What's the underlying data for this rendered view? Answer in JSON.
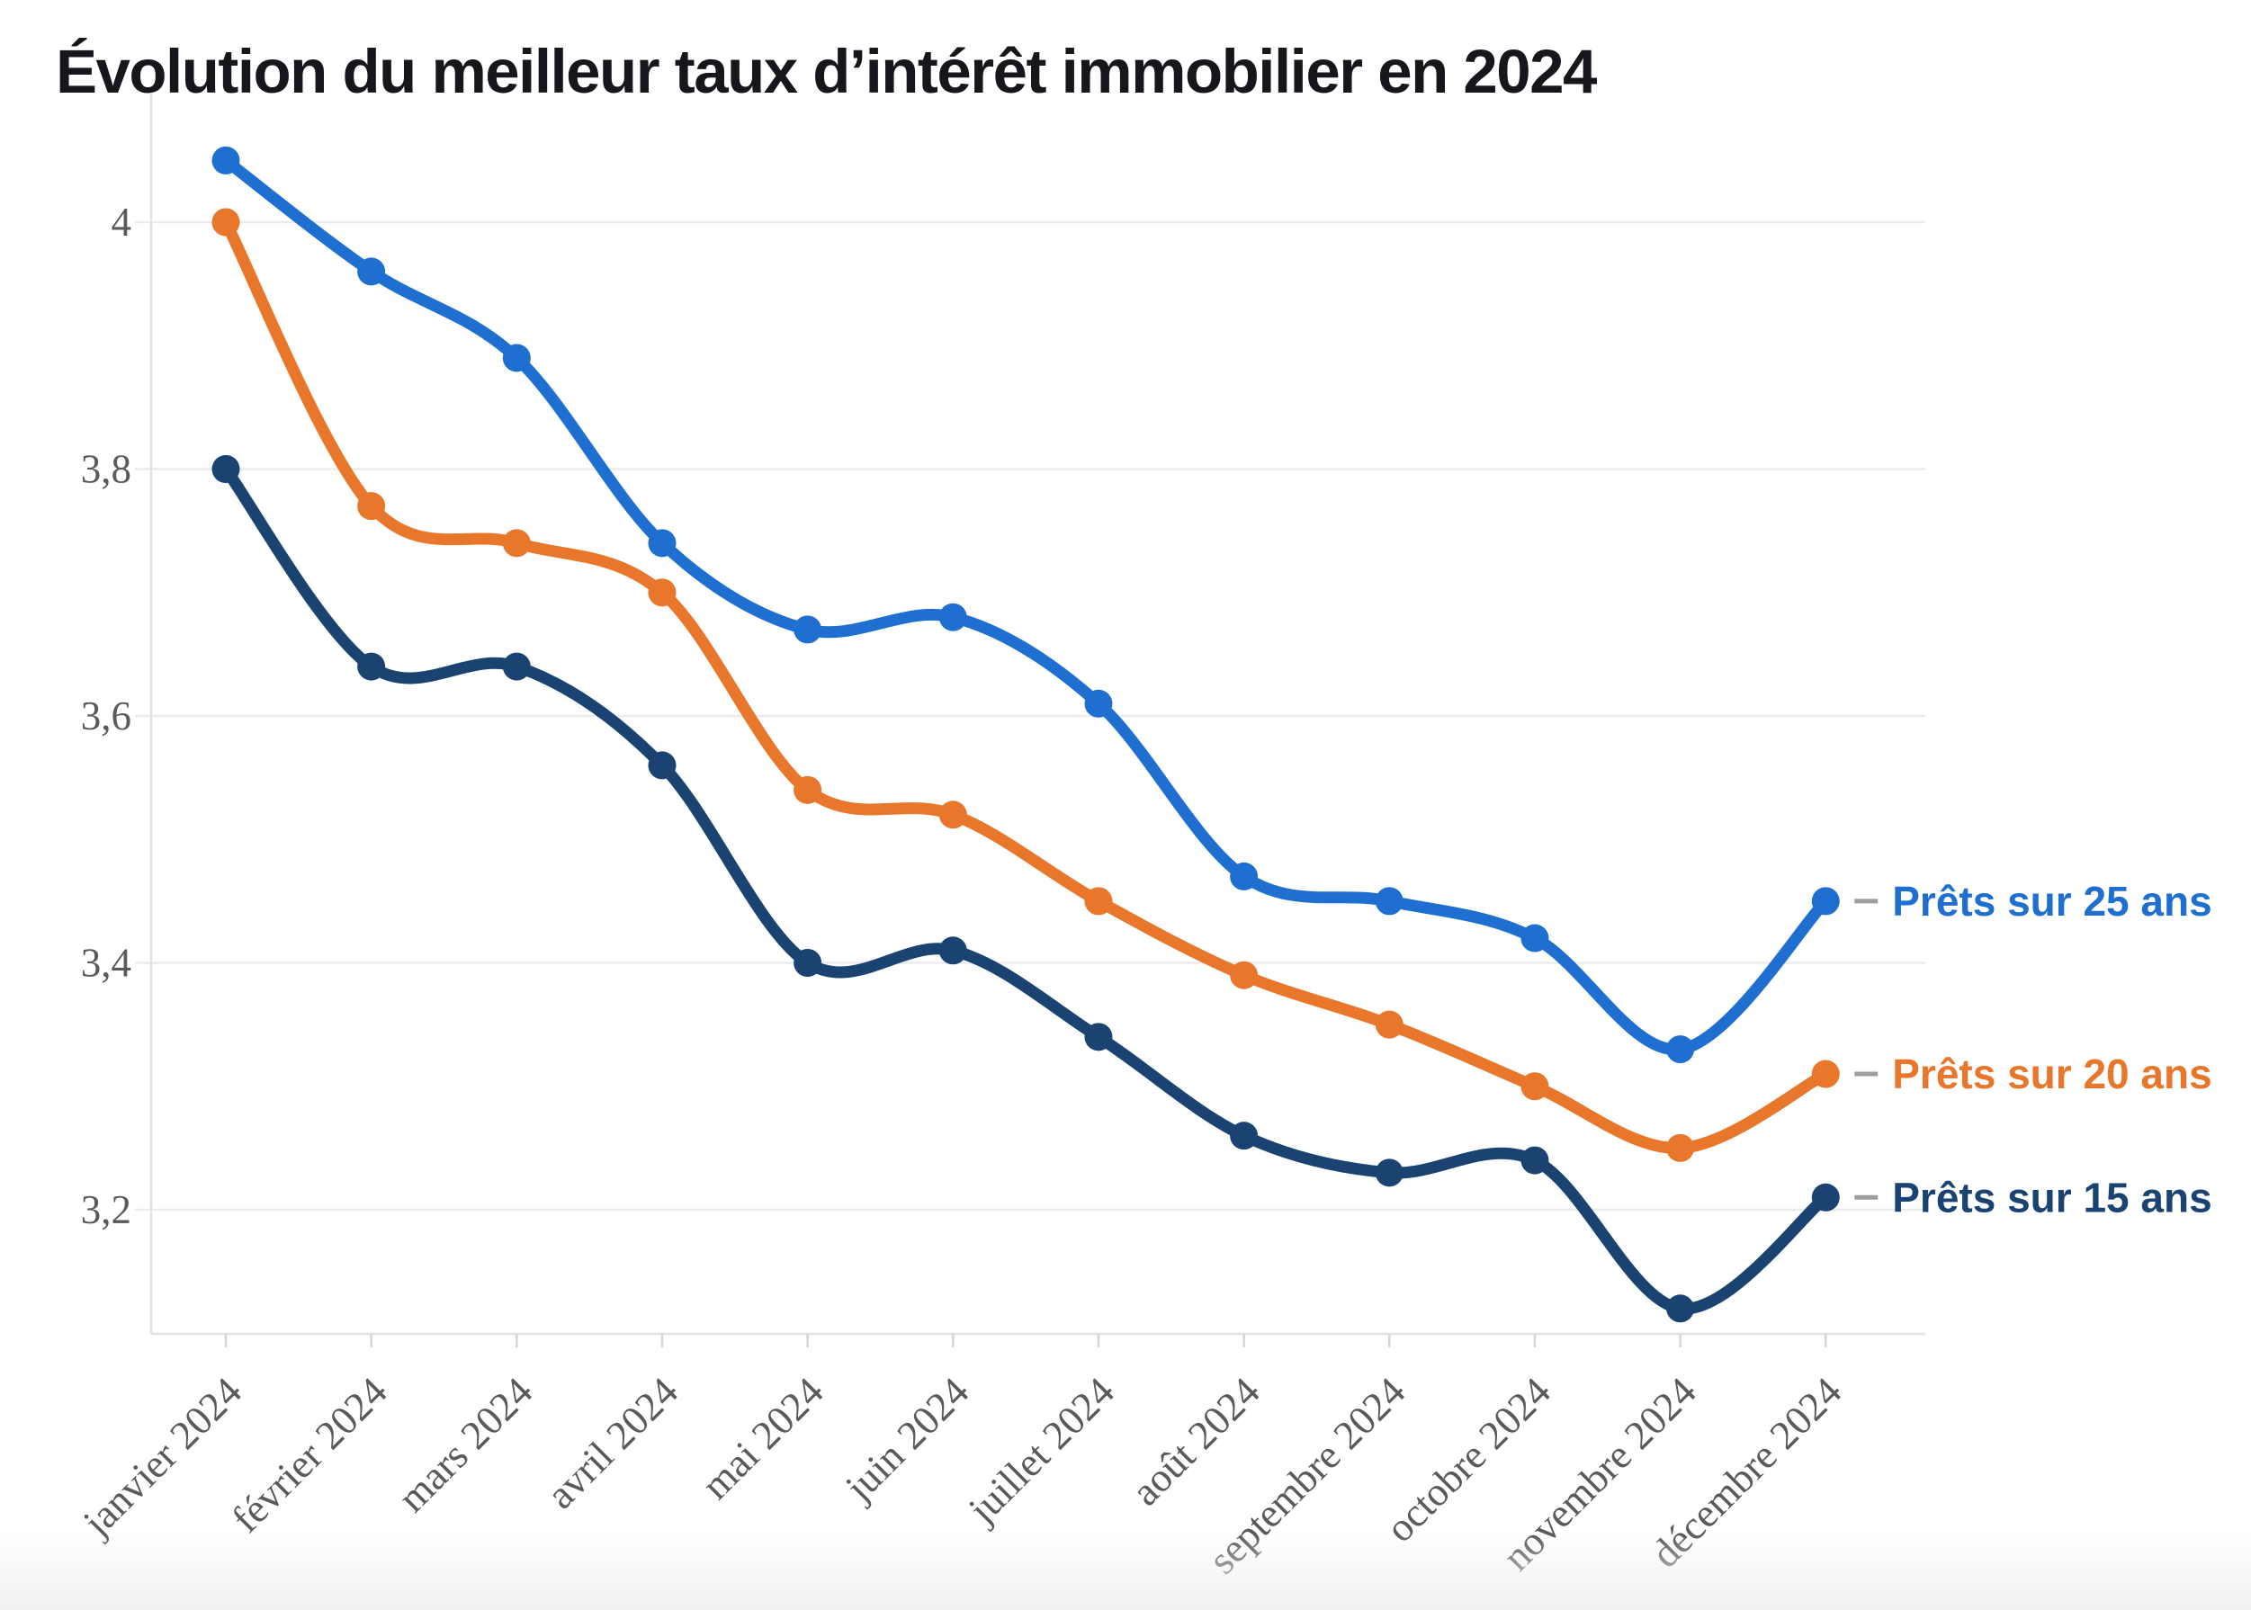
{
  "page": {
    "title": "Évolution du meilleur taux d’intérêt immobilier en 2024"
  },
  "chart_data": {
    "type": "line",
    "title": "Évolution du meilleur taux d’intérêt immobilier en 2024",
    "x_categories": [
      "janvier 2024",
      "février 2024",
      "mars 2024",
      "avril 2024",
      "mai 2024",
      "juin 2024",
      "juillet 2024",
      "août 2024",
      "septembre 2024",
      "octobre 2024",
      "novembre 2024",
      "décembre 2024"
    ],
    "y_tick_labels": [
      "4",
      "3,8",
      "3,6",
      "3,4",
      "3,2"
    ],
    "y_tick_values": [
      4.0,
      3.8,
      3.6,
      3.4,
      3.2
    ],
    "ylim": [
      3.1,
      4.1
    ],
    "grid": "horizontal",
    "decimal_separator": ",",
    "legend_position": "right-of-line-end",
    "legend_dash": "–",
    "series": [
      {
        "name": "Prêts sur 25 ans",
        "color": "#1e6fd0",
        "values": [
          4.05,
          3.96,
          3.89,
          3.74,
          3.67,
          3.68,
          3.61,
          3.47,
          3.45,
          3.42,
          3.33,
          3.45
        ]
      },
      {
        "name": "Prêts sur 20 ans",
        "color": "#e8762b",
        "values": [
          4.0,
          3.77,
          3.74,
          3.7,
          3.54,
          3.52,
          3.45,
          3.39,
          3.35,
          3.3,
          3.25,
          3.31
        ]
      },
      {
        "name": "Prêts sur 15 ans",
        "color": "#1a4372",
        "values": [
          3.8,
          3.64,
          3.64,
          3.56,
          3.4,
          3.41,
          3.34,
          3.26,
          3.23,
          3.24,
          3.12,
          3.21
        ]
      }
    ],
    "colors": {
      "gridline": "#ececec",
      "axis_line": "#e2e2e2",
      "tick_mark": "#d6d6d6",
      "tick_label": "#5a5a5a",
      "legend_dash": "#9e9e9e",
      "title": "#15171c",
      "background": "#ffffff"
    }
  }
}
